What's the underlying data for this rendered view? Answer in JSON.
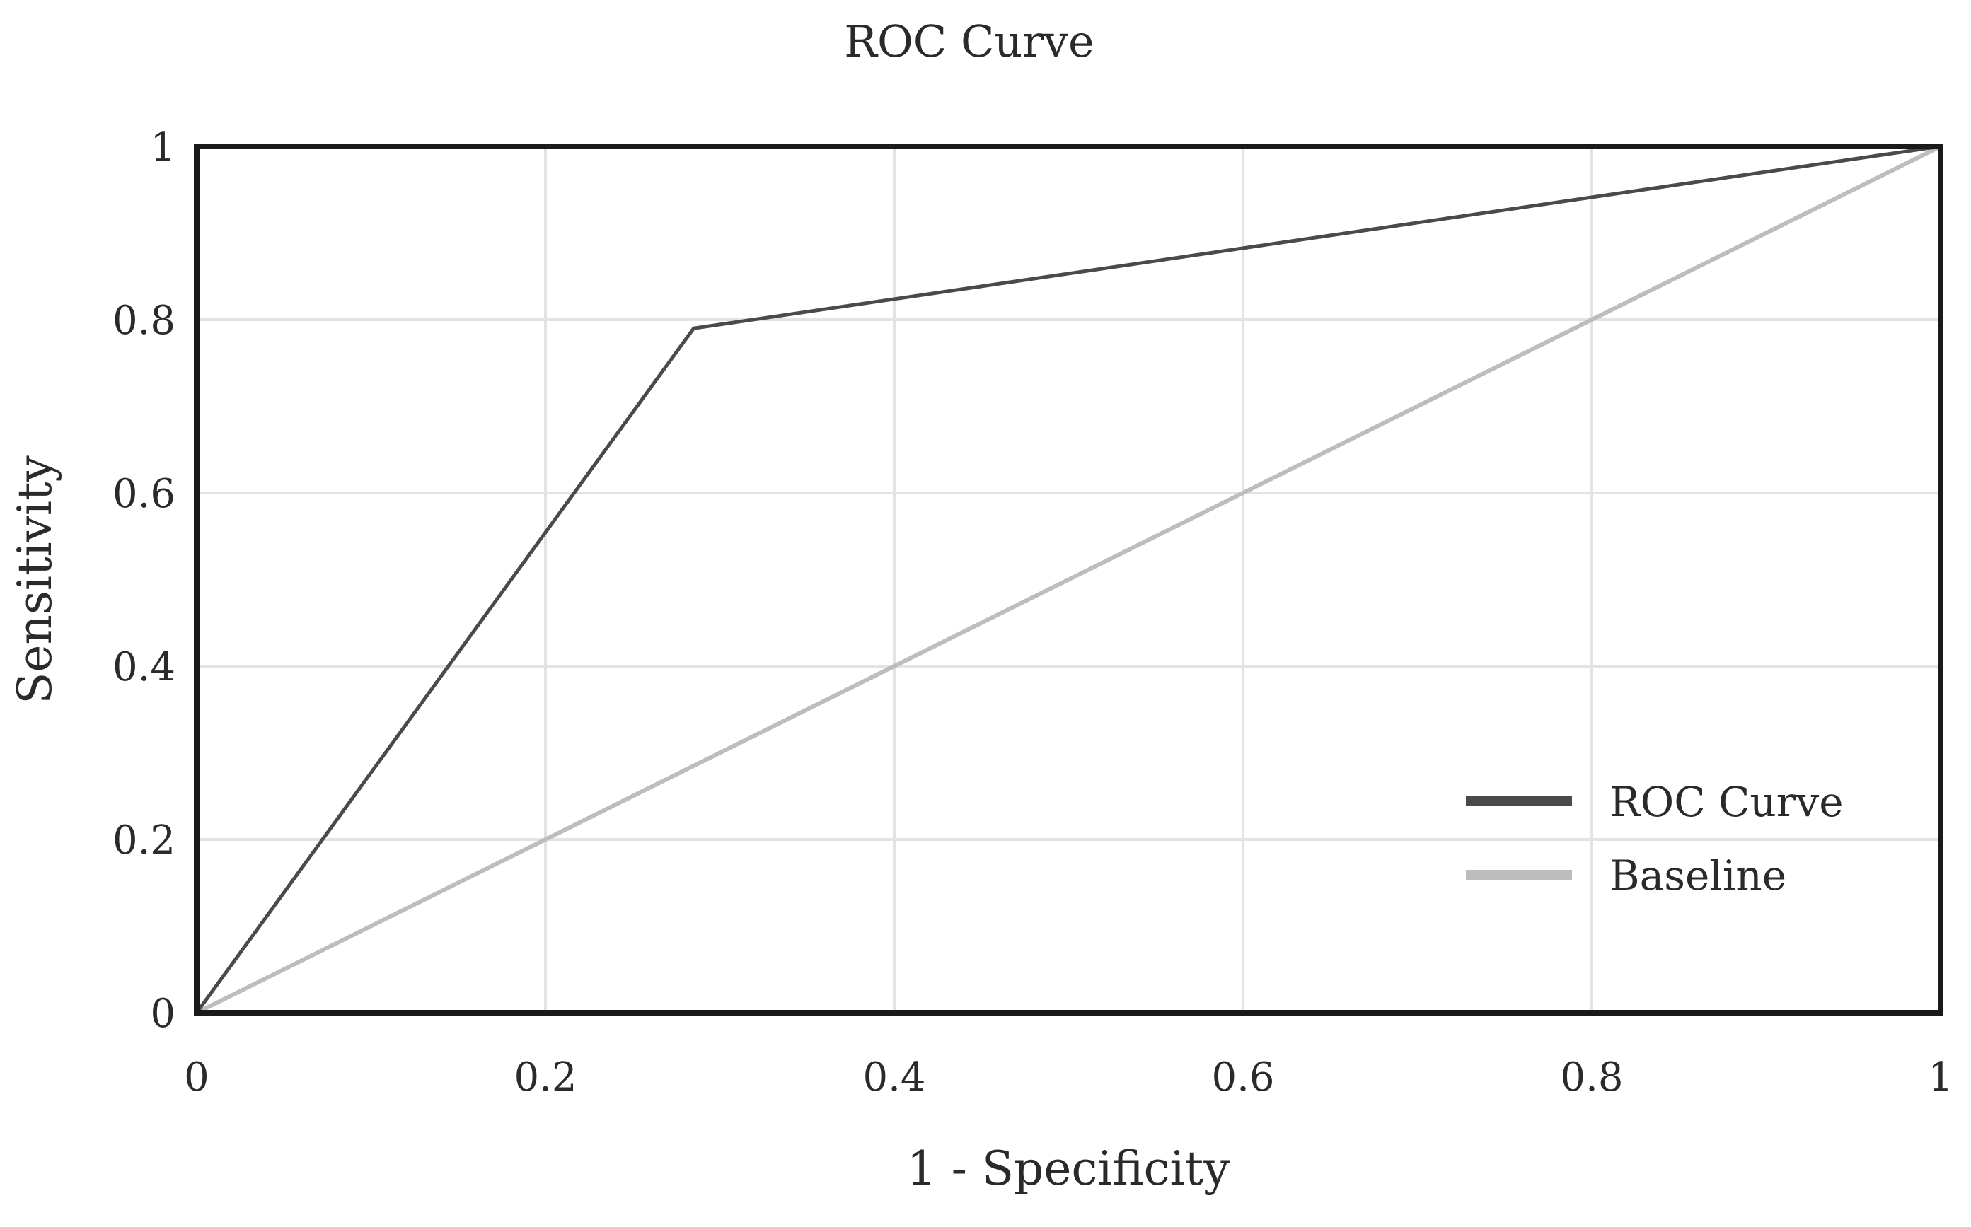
{
  "chart_data": {
    "type": "line",
    "title": "ROC Curve",
    "xlabel": "1 - Specificity",
    "ylabel": "Sensitivity",
    "xlim": [
      0,
      1
    ],
    "ylim": [
      0,
      1
    ],
    "x_ticks": [
      0,
      0.2,
      0.4,
      0.6,
      0.8,
      1
    ],
    "y_ticks": [
      0,
      0.2,
      0.4,
      0.6,
      0.8,
      1
    ],
    "x_tick_labels": [
      "0",
      "0.2",
      "0.4",
      "0.6",
      "0.8",
      "1"
    ],
    "y_tick_labels": [
      "0",
      "0.2",
      "0.4",
      "0.6",
      "0.8",
      "1"
    ],
    "grid": true,
    "legend_position": "bottom-right",
    "series": [
      {
        "name": "ROC Curve",
        "color": "#4a4a4a",
        "points": [
          [
            0,
            0
          ],
          [
            0.285,
            0.79
          ],
          [
            1,
            1
          ]
        ]
      },
      {
        "name": "Baseline",
        "color": "#bdbdbd",
        "points": [
          [
            0,
            0
          ],
          [
            1,
            1
          ]
        ]
      }
    ]
  }
}
